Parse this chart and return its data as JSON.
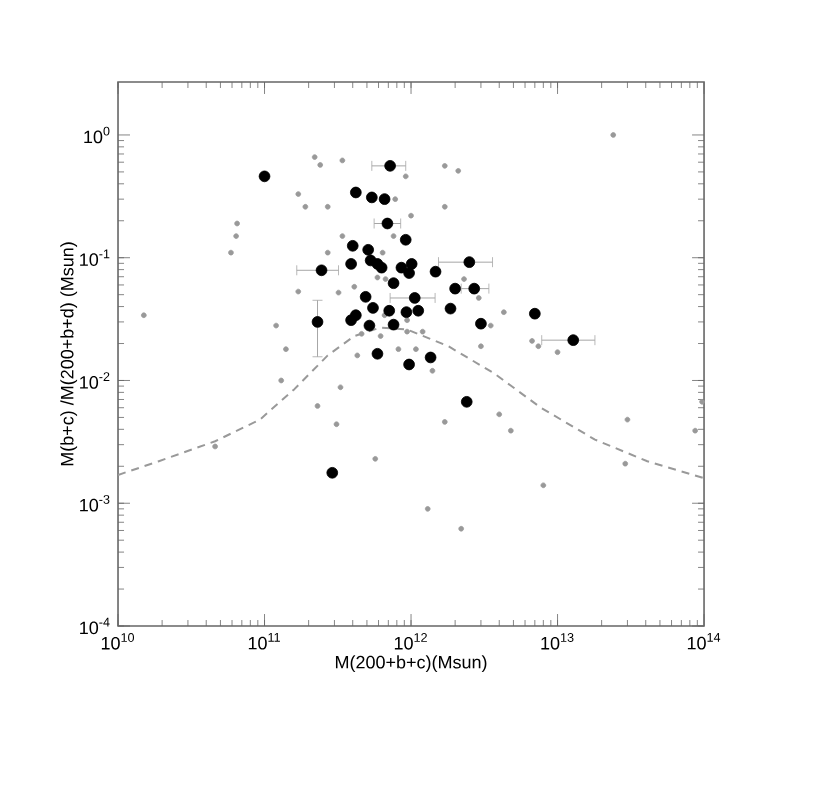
{
  "chart_data": {
    "type": "scatter",
    "xlabel": "M(200+b+c)(Msun)",
    "ylabel": "M(b+c) /M(200+b+d) (Msun)",
    "log": "xy",
    "xlim": [
      10000000000.0,
      100000000000000.0
    ],
    "ylim": [
      0.0001,
      2.7
    ],
    "xticks": [
      {
        "value": 10000000000.0,
        "label": "10$^{10}$"
      },
      {
        "value": 100000000000.0,
        "label": "10$^{11}$"
      },
      {
        "value": 1000000000000.0,
        "label": "10$^{12}$"
      },
      {
        "value": 10000000000000.0,
        "label": "10$^{13}$"
      },
      {
        "value": 100000000000000.0,
        "label": "10$^{14}$"
      }
    ],
    "yticks": [
      {
        "value": 0.0001,
        "label": "10$^{-4}$"
      },
      {
        "value": 0.001,
        "label": "10$^{-3}$"
      },
      {
        "value": 0.01,
        "label": "10$^{-2}$"
      },
      {
        "value": 0.1,
        "label": "10$^{-1}$"
      },
      {
        "value": 1,
        "label": "10$^{0}$"
      }
    ],
    "series": [
      {
        "type": "line",
        "color": "#999999",
        "line_style": "dashed",
        "marker": "none",
        "x": [
          10000000000.0,
          19000000000.0,
          46000000000.0,
          93000000000.0,
          160000000000.0,
          270000000000.0,
          410000000000.0,
          620000000000.0,
          940000000000.0,
          1800000000000.0,
          3700000000000.0,
          7700000000000.0,
          18000000000000.0,
          41000000000000.0,
          100000000000000.0
        ],
        "values": [
          0.0017,
          0.0022,
          0.0032,
          0.0048,
          0.0085,
          0.016,
          0.023,
          0.027,
          0.026,
          0.019,
          0.0114,
          0.006,
          0.0033,
          0.0022,
          0.0016
        ]
      },
      {
        "color": "#999999",
        "marker": "circle",
        "x": [
          15000000000.0,
          46000000000.0,
          59000000000.0,
          64000000000.0,
          65000000000.0,
          120000000000.0,
          130000000000.0,
          140000000000.0,
          170000000000.0,
          170000000000.0,
          190000000000.0,
          220000000000.0,
          240000000000.0,
          230000000000.0,
          270000000000.0,
          310000000000.0,
          330000000000.0,
          340000000000.0,
          340000000000.0,
          270000000000.0,
          320000000000.0,
          410000000000.0,
          430000000000.0,
          570000000000.0,
          640000000000.0,
          760000000000.0,
          780000000000.0,
          920000000000.0,
          1000000000000.0,
          620000000000.0,
          820000000000.0,
          1080000000000.0,
          1300000000000.0,
          1400000000000.0,
          1700000000000.0,
          1700000000000.0,
          2100000000000.0,
          2200000000000.0,
          1700000000000.0,
          3000000000000.0,
          3500000000000.0,
          4000000000000.0,
          4800000000000.0,
          4300000000000.0,
          6700000000000.0,
          7400000000000.0,
          8000000000000.0,
          10000000000000.0,
          24000000000000.0,
          29000000000000.0,
          30000000000000.0,
          87000000000000.0,
          97000000000000.0,
          590000000000.0,
          670000000000.0,
          660000000000.0,
          940000000000.0,
          940000000000.0,
          1200000000000.0,
          460000000000.0,
          2300000000000.0,
          2900000000000.0
        ],
        "values": [
          0.034,
          0.0029,
          0.11,
          0.15,
          0.19,
          0.028,
          0.01,
          0.018,
          0.053,
          0.33,
          0.26,
          0.66,
          0.57,
          0.0062,
          0.26,
          0.0044,
          0.0088,
          0.62,
          0.15,
          0.11,
          0.052,
          0.058,
          0.016,
          0.0023,
          0.11,
          0.15,
          0.3,
          0.46,
          0.22,
          0.023,
          0.018,
          0.018,
          0.0009,
          0.012,
          0.26,
          0.56,
          0.51,
          0.00062,
          0.0046,
          0.019,
          0.028,
          0.0053,
          0.0039,
          0.036,
          0.021,
          0.019,
          0.0014,
          0.017,
          1.0,
          0.0021,
          0.0048,
          0.0039,
          0.0067,
          0.069,
          0.067,
          0.034,
          0.031,
          0.025,
          0.025,
          0.024,
          0.067,
          0.047
        ]
      },
      {
        "color": "#000000",
        "marker": "circle",
        "x": [
          100000000000.0,
          720000000000.0,
          420000000000.0,
          540000000000.0,
          660000000000.0,
          690000000000.0,
          920000000000.0,
          400000000000.0,
          510000000000.0,
          245000000000.0,
          390000000000.0,
          530000000000.0,
          590000000000.0,
          630000000000.0,
          860000000000.0,
          1010000000000.0,
          970000000000.0,
          1470000000000.0,
          2500000000000.0,
          760000000000.0,
          2000000000000.0,
          2700000000000.0,
          490000000000.0,
          1060000000000.0,
          230000000000.0,
          390000000000.0,
          420000000000.0,
          550000000000.0,
          520000000000.0,
          710000000000.0,
          760000000000.0,
          930000000000.0,
          1120000000000.0,
          1860000000000.0,
          3000000000000.0,
          7000000000000.0,
          12800000000000.0,
          590000000000.0,
          970000000000.0,
          1360000000000.0,
          2400000000000.0,
          290000000000.0
        ],
        "values": [
          0.46,
          0.56,
          0.34,
          0.31,
          0.3,
          0.19,
          0.14,
          0.125,
          0.116,
          0.079,
          0.089,
          0.095,
          0.089,
          0.083,
          0.083,
          0.089,
          0.075,
          0.077,
          0.092,
          0.062,
          0.056,
          0.056,
          0.048,
          0.047,
          0.03,
          0.031,
          0.034,
          0.039,
          0.028,
          0.037,
          0.0285,
          0.036,
          0.037,
          0.0385,
          0.029,
          0.035,
          0.0213,
          0.0165,
          0.0135,
          0.0154,
          0.0067,
          0.00177
        ],
        "xerrors": [
          null,
          [
            540000000000.0,
            920000000000.0
          ],
          null,
          null,
          null,
          [
            560000000000.0,
            850000000000.0
          ],
          null,
          null,
          null,
          [
            166000000000.0,
            320000000000.0
          ],
          null,
          null,
          null,
          null,
          null,
          null,
          null,
          null,
          [
            1540000000000.0,
            3600000000000.0
          ],
          null,
          null,
          [
            2200000000000.0,
            3400000000000.0
          ],
          null,
          [
            720000000000.0,
            1460000000000.0
          ],
          null,
          null,
          null,
          null,
          null,
          null,
          null,
          null,
          null,
          null,
          null,
          null,
          [
            7800000000000.0,
            18000000000000.0
          ],
          null,
          null,
          null,
          null,
          null
        ],
        "errors": [
          null,
          null,
          null,
          null,
          null,
          null,
          null,
          null,
          null,
          null,
          null,
          null,
          null,
          null,
          null,
          null,
          null,
          null,
          null,
          null,
          null,
          null,
          null,
          null,
          [
            0.0156,
            0.045
          ],
          null,
          null,
          null,
          null,
          null,
          null,
          null,
          null,
          null,
          null,
          null,
          null,
          null,
          null,
          null,
          null,
          null
        ]
      }
    ]
  }
}
